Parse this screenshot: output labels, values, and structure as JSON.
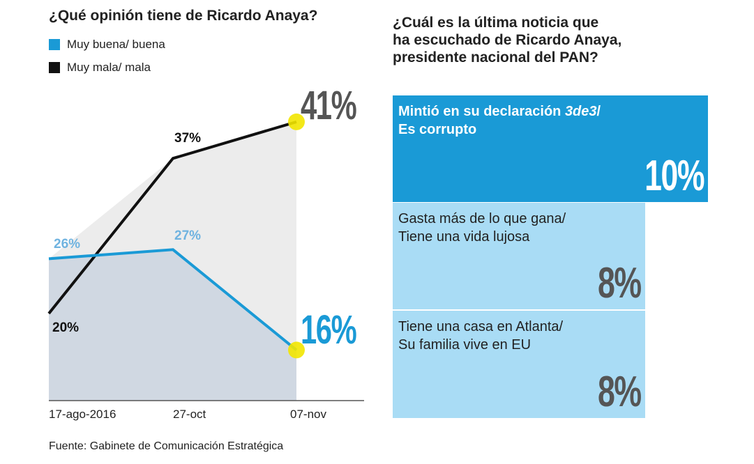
{
  "left": {
    "title": "¿Qué opinión tiene de Ricardo Anaya?",
    "source": "Fuente: Gabinete de Comunicación Estratégica"
  },
  "chart_data": [
    {
      "type": "line",
      "title": "¿Qué opinión tiene de Ricardo Anaya?",
      "categories": [
        "17-ago-2016",
        "27-oct",
        "07-nov"
      ],
      "series": [
        {
          "name": "Muy buena/ buena",
          "values": [
            26,
            27,
            16
          ],
          "labels": [
            "26%",
            "27%",
            "16%"
          ],
          "color": "#1a9ad6"
        },
        {
          "name": "Muy mala/ mala",
          "values": [
            20,
            37,
            41
          ],
          "labels": [
            "20%",
            "37%",
            "41%"
          ],
          "color": "#111111"
        }
      ],
      "legend": "top-left",
      "grid": false,
      "highlight_color": "#f2e600"
    },
    {
      "type": "bar",
      "title": "¿Cuál es la última noticia que ha escuchado de Ricardo Anaya, presidente nacional del PAN?",
      "categories": [
        [
          "Mintió en su declaración ",
          "3de3",
          "/",
          "Es corrupto"
        ],
        [
          "Gasta más de lo que gana/",
          "Tiene una vida lujosa"
        ],
        [
          "Tiene una casa en Atlanta/",
          "Su familia vive en EU"
        ]
      ],
      "values": [
        10,
        8,
        8
      ],
      "labels": [
        "10%",
        "8%",
        "8%"
      ],
      "colors": [
        "#1a9ad6",
        "#a9dcf5",
        "#a9dcf5"
      ]
    }
  ],
  "right": {
    "title_lines": [
      "¿Cuál es la última noticia que",
      "ha escuchado de Ricardo Anaya,",
      "presidente nacional del PAN?"
    ]
  }
}
